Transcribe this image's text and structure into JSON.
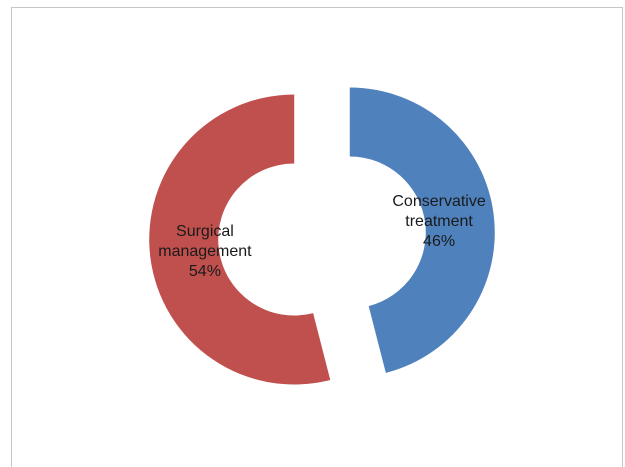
{
  "chart_data": {
    "type": "pie",
    "variant": "doughnut-exploded",
    "slices": [
      {
        "category_lines": [
          "Surgical",
          "management"
        ],
        "value": 54,
        "label": "54%",
        "color": "#c0504d"
      },
      {
        "category_lines": [
          "Conservative",
          "treatment"
        ],
        "value": 46,
        "label": "46%",
        "color": "#4f81bd"
      }
    ],
    "title": "",
    "legend": "none"
  }
}
